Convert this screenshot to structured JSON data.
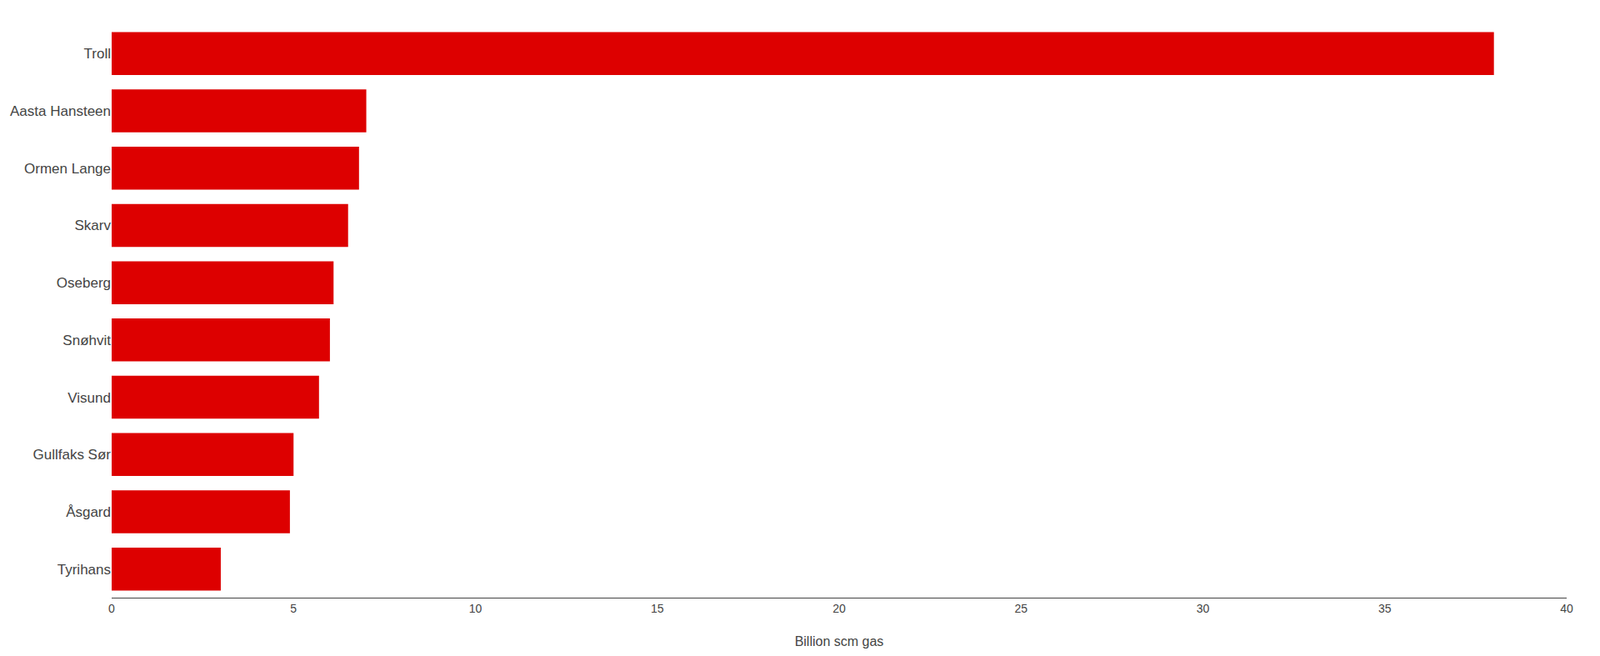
{
  "chart_data": {
    "type": "bar",
    "orientation": "horizontal",
    "categories": [
      "Troll",
      "Aasta Hansteen",
      "Ormen Lange",
      "Skarv",
      "Oseberg",
      "Snøhvit",
      "Visund",
      "Gullfaks Sør",
      "Åsgard",
      "Tyrihans"
    ],
    "values": [
      38.0,
      7.0,
      6.8,
      6.5,
      6.1,
      6.0,
      5.7,
      5.0,
      4.9,
      3.0
    ],
    "color": "#dd0000",
    "xlabel": "Billion scm gas",
    "xlim": [
      0,
      40
    ],
    "xticks": [
      0,
      5,
      10,
      15,
      20,
      25,
      30,
      35,
      40
    ],
    "grid": false
  }
}
